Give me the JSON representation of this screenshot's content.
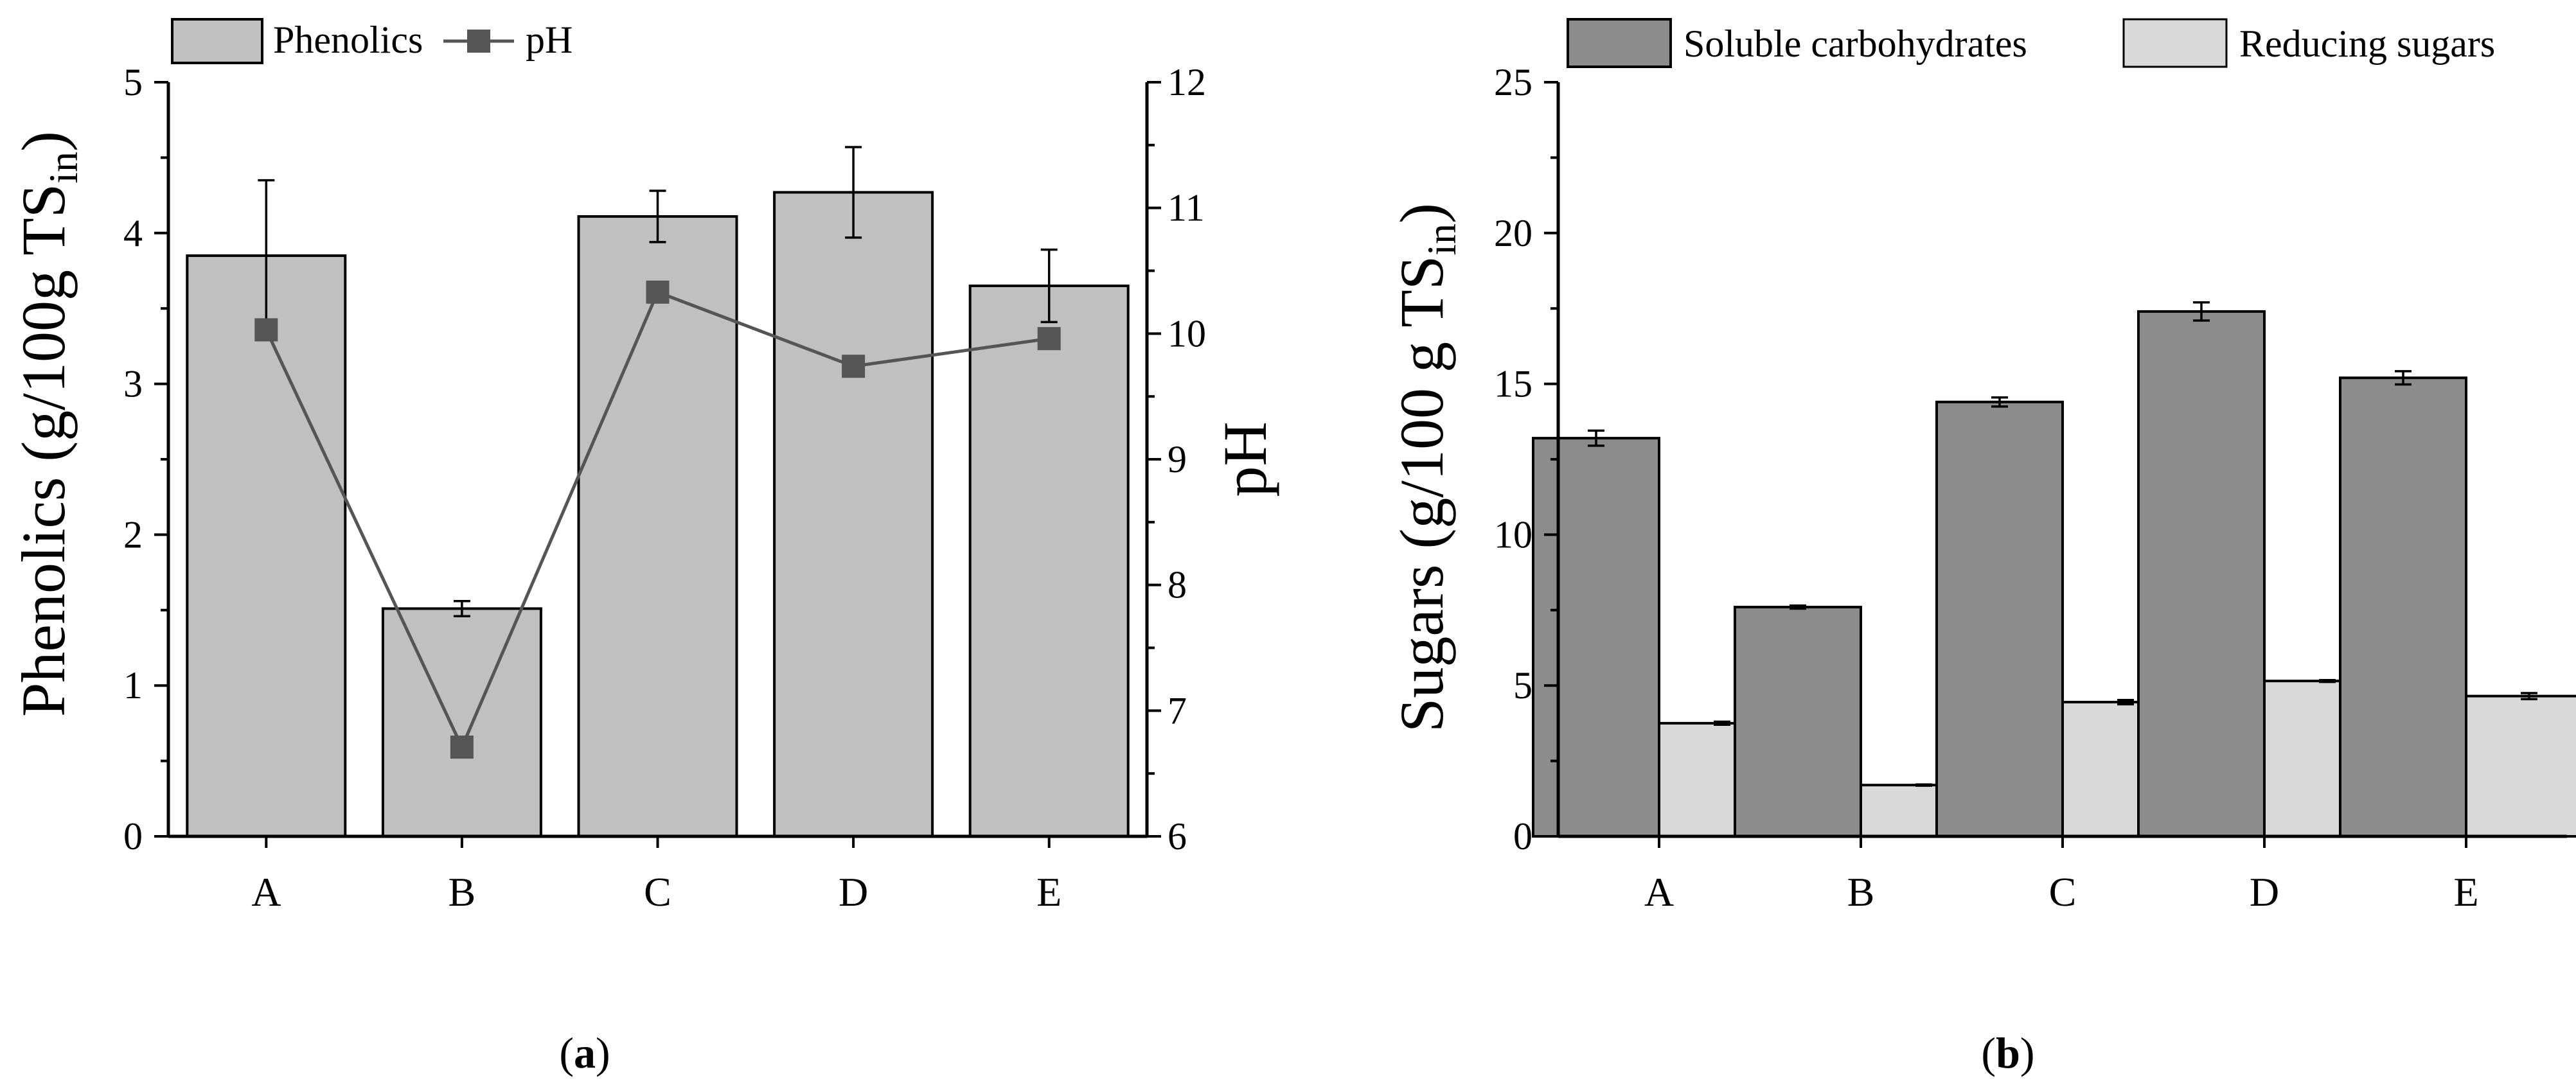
{
  "chart_data": [
    {
      "panel": "a",
      "panel_label": "(a)",
      "panel_label_letter": "a",
      "type": "bar",
      "categories": [
        "A",
        "B",
        "C",
        "D",
        "E"
      ],
      "series": [
        {
          "name": "Phenolics",
          "values": [
            3.85,
            1.51,
            4.11,
            4.27,
            3.65
          ],
          "errors": [
            0.5,
            0.05,
            0.17,
            0.3,
            0.24
          ],
          "color": "#c0c0c0"
        }
      ],
      "line_series": [
        {
          "name": "pH",
          "values": [
            10.03,
            6.71,
            10.33,
            9.74,
            9.96
          ],
          "color": "#555555"
        }
      ],
      "ylabel_main": "Phenolics (g/100g TS",
      "ylabel_subscript": "in",
      "ylabel_close": ")",
      "ylim": [
        0,
        5
      ],
      "yticks": [
        "0",
        "1",
        "2",
        "3",
        "4",
        "5"
      ],
      "y2label": "pH",
      "y2lim": [
        6,
        12
      ],
      "y2ticks": [
        "6",
        "7",
        "8",
        "9",
        "10",
        "11",
        "12"
      ],
      "legend": [
        "Phenolics",
        "pH"
      ],
      "legend_position": "top-left"
    },
    {
      "panel": "b",
      "panel_label": "(b)",
      "panel_label_letter": "b",
      "type": "bar",
      "categories": [
        "A",
        "B",
        "C",
        "D",
        "E"
      ],
      "series": [
        {
          "name": "Soluble carbohydrates",
          "values": [
            13.2,
            7.6,
            14.4,
            17.4,
            15.2
          ],
          "errors": [
            0.25,
            0.05,
            0.15,
            0.3,
            0.22
          ],
          "color": "#8c8c8c"
        },
        {
          "name": "Reducing sugars",
          "values": [
            3.75,
            1.7,
            4.45,
            5.15,
            4.65
          ],
          "errors": [
            0.05,
            0.02,
            0.07,
            0.03,
            0.1
          ],
          "color": "#d9d9d9"
        }
      ],
      "ylabel_main": "Sugars (g/100 g TS",
      "ylabel_subscript": "in",
      "ylabel_close": ")",
      "ylim": [
        0,
        25
      ],
      "yticks": [
        "0",
        "5",
        "10",
        "15",
        "20",
        "25"
      ],
      "legend": [
        "Soluble carbohydrates",
        "Reducing sugars"
      ],
      "legend_position": "top"
    }
  ]
}
